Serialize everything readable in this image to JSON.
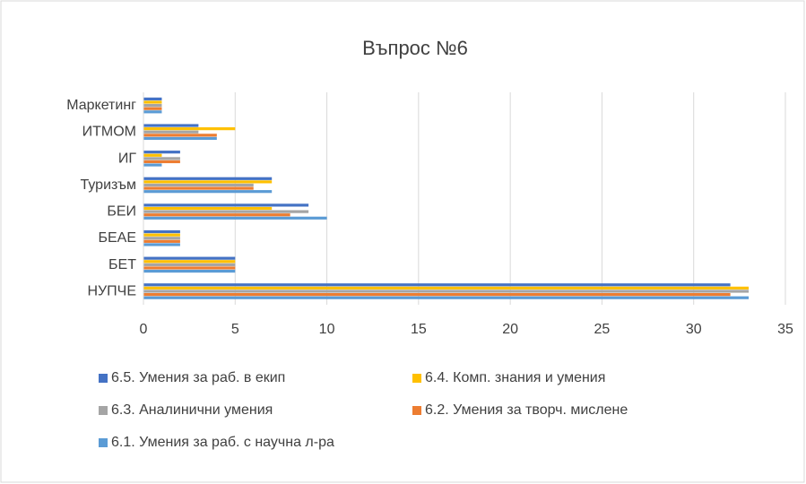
{
  "chart_data": {
    "type": "bar",
    "orientation": "horizontal",
    "title": "Въпрос №6",
    "categories": [
      "Маркетинг",
      "ИТМОМ",
      "ИГ",
      "Туризъм",
      "БЕИ",
      "БЕАЕ",
      "БЕТ",
      "НУПЧЕ"
    ],
    "series": [
      {
        "name": "6.5. Умения за раб. в екип",
        "color": "#4472c4",
        "values": [
          1,
          3,
          2,
          7,
          9,
          2,
          5,
          32
        ]
      },
      {
        "name": "6.4. Комп. знания и умения",
        "color": "#ffc000",
        "values": [
          1,
          5,
          1,
          7,
          7,
          2,
          5,
          33
        ]
      },
      {
        "name": "6.3. Аналинични умения",
        "color": "#a5a5a5",
        "values": [
          1,
          3,
          2,
          6,
          9,
          2,
          5,
          33
        ]
      },
      {
        "name": "6.2. Умения за творч. мислене",
        "color": "#ed7d31",
        "values": [
          1,
          4,
          2,
          6,
          8,
          2,
          5,
          32
        ]
      },
      {
        "name": "6.1. Умения за раб. с научна л-ра",
        "color": "#5b9bd5",
        "values": [
          1,
          4,
          1,
          7,
          10,
          2,
          5,
          33
        ]
      }
    ],
    "xlim": [
      0,
      35
    ],
    "xticks": [
      0,
      5,
      10,
      15,
      20,
      25,
      30,
      35
    ],
    "grid": true,
    "legend": "bottom"
  }
}
